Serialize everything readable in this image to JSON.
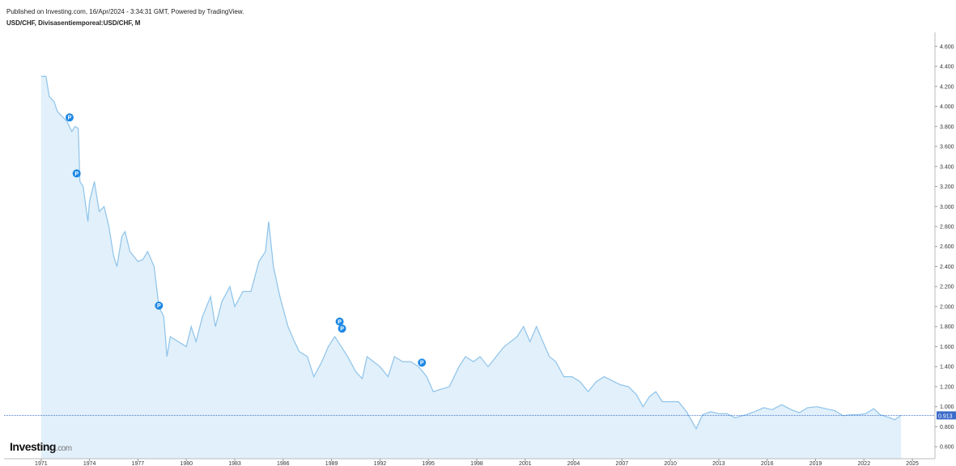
{
  "header": {
    "published": "Published on Investing.com, 16/Apr/2024 - 3:34:31 GMT, Powered by TradingView.",
    "symbol": "USD/CHF, Divisasentiemporeal:USD/CHF, M"
  },
  "logo": {
    "name": "Investing",
    "suffix": ".com"
  },
  "chart_data": {
    "type": "area",
    "x": [
      1971.0,
      1971.3,
      1971.5,
      1971.8,
      1972.0,
      1972.3,
      1972.6,
      1972.9,
      1973.1,
      1973.3,
      1973.4,
      1973.6,
      1973.9,
      1974.0,
      1974.3,
      1974.6,
      1974.9,
      1975.2,
      1975.5,
      1975.7,
      1976.0,
      1976.2,
      1976.5,
      1977.0,
      1977.3,
      1977.6,
      1978.0,
      1978.3,
      1978.6,
      1978.8,
      1979.0,
      1979.5,
      1980.0,
      1980.3,
      1980.6,
      1981.0,
      1981.5,
      1981.8,
      1982.2,
      1982.7,
      1983.0,
      1983.5,
      1984.0,
      1984.5,
      1984.9,
      1985.1,
      1985.4,
      1985.8,
      1986.3,
      1986.7,
      1987.0,
      1987.5,
      1987.9,
      1988.4,
      1988.8,
      1989.2,
      1989.6,
      1990.0,
      1990.5,
      1990.9,
      1991.2,
      1991.6,
      1992.0,
      1992.5,
      1992.9,
      1993.4,
      1993.9,
      1994.4,
      1994.9,
      1995.3,
      1995.7,
      1996.3,
      1996.9,
      1997.3,
      1997.8,
      1998.2,
      1998.7,
      1999.2,
      1999.7,
      2000.1,
      2000.5,
      2000.9,
      2001.3,
      2001.7,
      2002.1,
      2002.5,
      2002.9,
      2003.4,
      2003.9,
      2004.4,
      2004.9,
      2005.4,
      2005.9,
      2006.5,
      2006.9,
      2007.4,
      2007.9,
      2008.3,
      2008.7,
      2009.1,
      2009.5,
      2010.0,
      2010.5,
      2011.0,
      2011.6,
      2012.0,
      2012.5,
      2013.0,
      2013.5,
      2014.0,
      2014.7,
      2015.2,
      2015.8,
      2016.3,
      2016.9,
      2017.5,
      2018.0,
      2018.5,
      2019.1,
      2019.6,
      2020.2,
      2020.7,
      2021.2,
      2021.7,
      2022.1,
      2022.6,
      2023.0,
      2023.6,
      2023.9,
      2024.3
    ],
    "values": [
      4.3,
      4.3,
      4.1,
      4.05,
      3.95,
      3.9,
      3.85,
      3.75,
      3.8,
      3.78,
      3.25,
      3.2,
      2.85,
      3.05,
      3.25,
      2.95,
      3.0,
      2.8,
      2.5,
      2.4,
      2.7,
      2.75,
      2.55,
      2.45,
      2.47,
      2.55,
      2.4,
      2.0,
      1.9,
      1.5,
      1.7,
      1.65,
      1.6,
      1.8,
      1.65,
      1.9,
      2.1,
      1.8,
      2.05,
      2.2,
      2.0,
      2.15,
      2.15,
      2.45,
      2.55,
      2.85,
      2.4,
      2.1,
      1.8,
      1.65,
      1.55,
      1.5,
      1.3,
      1.45,
      1.6,
      1.7,
      1.6,
      1.5,
      1.35,
      1.28,
      1.5,
      1.45,
      1.4,
      1.3,
      1.5,
      1.45,
      1.45,
      1.4,
      1.3,
      1.15,
      1.17,
      1.2,
      1.4,
      1.5,
      1.45,
      1.5,
      1.4,
      1.5,
      1.6,
      1.65,
      1.7,
      1.8,
      1.65,
      1.8,
      1.65,
      1.5,
      1.45,
      1.3,
      1.3,
      1.25,
      1.15,
      1.25,
      1.3,
      1.25,
      1.22,
      1.2,
      1.12,
      1.0,
      1.1,
      1.15,
      1.05,
      1.05,
      1.05,
      0.95,
      0.78,
      0.92,
      0.95,
      0.93,
      0.93,
      0.89,
      0.92,
      0.95,
      0.99,
      0.97,
      1.02,
      0.97,
      0.94,
      0.99,
      1.0,
      0.98,
      0.96,
      0.91,
      0.92,
      0.92,
      0.93,
      0.98,
      0.92,
      0.89,
      0.87,
      0.913
    ],
    "color": "#8ec3ea",
    "fill": "#e1f0fa",
    "last_value": 0.913,
    "markers": [
      {
        "x": 1972.76,
        "y": 3.89,
        "label": "P"
      },
      {
        "x": 1973.2,
        "y": 3.33,
        "label": "P"
      },
      {
        "x": 1978.3,
        "y": 2.01,
        "label": "P"
      },
      {
        "x": 1989.5,
        "y": 1.85,
        "label": "P"
      },
      {
        "x": 1989.65,
        "y": 1.78,
        "label": "P"
      },
      {
        "x": 1994.6,
        "y": 1.44,
        "label": "P"
      }
    ],
    "xlim": [
      1968.7,
      2026.4
    ],
    "ylim": [
      0.48,
      4.74
    ],
    "xticks": [
      1971,
      1974,
      1977,
      1980,
      1983,
      1986,
      1989,
      1992,
      1995,
      1998,
      2001,
      2004,
      2007,
      2010,
      2013,
      2016,
      2019,
      2022,
      2025
    ],
    "yticks": [
      {
        "value": 0.6,
        "label": "0.600"
      },
      {
        "value": 0.8,
        "label": "0.800"
      },
      {
        "value": 1.0,
        "label": "1.000"
      },
      {
        "value": 1.2,
        "label": "1.200"
      },
      {
        "value": 1.4,
        "label": "1.400"
      },
      {
        "value": 1.6,
        "label": "1.600"
      },
      {
        "value": 1.8,
        "label": "1.800"
      },
      {
        "value": 2.0,
        "label": "2.000"
      },
      {
        "value": 2.2,
        "label": "2.200"
      },
      {
        "value": 2.4,
        "label": "2.400"
      },
      {
        "value": 2.6,
        "label": "2.600"
      },
      {
        "value": 2.8,
        "label": "2.800"
      },
      {
        "value": 3.0,
        "label": "3.000"
      },
      {
        "value": 3.2,
        "label": "3.200"
      },
      {
        "value": 3.4,
        "label": "3.400"
      },
      {
        "value": 3.6,
        "label": "3.600"
      },
      {
        "value": 3.8,
        "label": "3.800"
      },
      {
        "value": 4.0,
        "label": "4.000"
      },
      {
        "value": 4.2,
        "label": "4.200"
      },
      {
        "value": 4.4,
        "label": "4.400"
      },
      {
        "value": 4.6,
        "label": "4.600"
      }
    ]
  }
}
